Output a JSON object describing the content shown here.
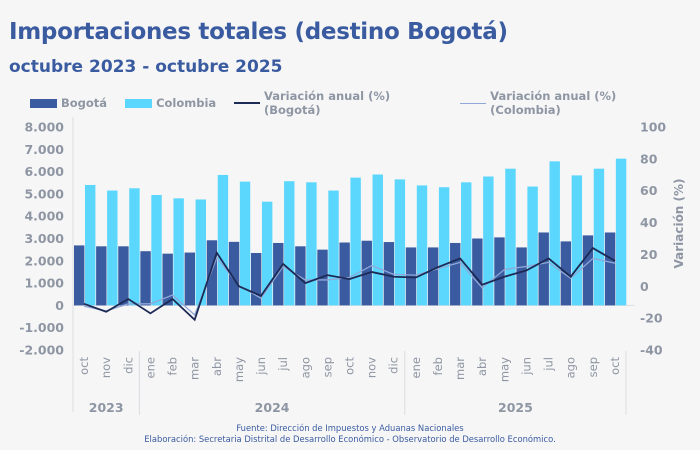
{
  "header": {
    "title": "Importaciones totales (destino Bogotá)",
    "subtitle": "octubre 2023 - octubre 2025"
  },
  "legend": [
    {
      "label": "Bogotá",
      "kind": "bar",
      "color": "#3a5ba0"
    },
    {
      "label": "Colombia",
      "kind": "bar",
      "color": "#5bd6fc"
    },
    {
      "label": "Variación anual (%) (Bogotá)",
      "kind": "line",
      "color": "#1c2a55"
    },
    {
      "label": "Variación anual (%) (Colombia)",
      "kind": "line",
      "color": "#8fa8d8"
    }
  ],
  "footer": {
    "source": "Fuente: Dirección de Impuestos y Aduanas Nacionales",
    "credit": "Elaboración: Secretaria Distrital de Desarrollo Económico - Observatorio de Desarrollo Económico."
  },
  "chart_data": {
    "type": "bar",
    "title": "Importaciones totales (destino Bogotá)",
    "subtitle": "octubre 2023 - octubre 2025",
    "categories": [
      "oct",
      "nov",
      "dic",
      "ene",
      "feb",
      "mar",
      "abr",
      "may",
      "jun",
      "jul",
      "ago",
      "sep",
      "oct",
      "nov",
      "dic",
      "ene",
      "feb",
      "mar",
      "abr",
      "may",
      "jun",
      "jul",
      "ago",
      "sep",
      "oct"
    ],
    "year_groups": [
      {
        "label": "2023",
        "start": 0,
        "end": 2
      },
      {
        "label": "2024",
        "start": 3,
        "end": 14
      },
      {
        "label": "2025",
        "start": 15,
        "end": 24
      }
    ],
    "series": [
      {
        "name": "Bogotá",
        "type": "bar",
        "axis": "left",
        "color": "#3a5ba0",
        "values": [
          2690,
          2650,
          2650,
          2430,
          2320,
          2370,
          2920,
          2850,
          2350,
          2800,
          2650,
          2500,
          2820,
          2900,
          2840,
          2600,
          2600,
          2800,
          3000,
          3050,
          2600,
          3270,
          2870,
          3140,
          3270
        ]
      },
      {
        "name": "Colombia",
        "type": "bar",
        "axis": "left",
        "color": "#5bd6fc",
        "values": [
          5400,
          5150,
          5250,
          4950,
          4800,
          4750,
          5850,
          5550,
          4650,
          5570,
          5520,
          5150,
          5730,
          5870,
          5650,
          5380,
          5300,
          5520,
          5780,
          6130,
          5330,
          6460,
          5830,
          6130,
          6580
        ]
      },
      {
        "name": "Variación anual (%) (Bogotá)",
        "type": "line",
        "axis": "right",
        "color": "#1c2a55",
        "values": [
          -11,
          -16,
          -8,
          -17,
          -8,
          -21,
          21,
          0,
          -6,
          14,
          2,
          7,
          4.5,
          9,
          6,
          5.5,
          12,
          17.5,
          1,
          6,
          10,
          17.5,
          6,
          24,
          16
        ]
      },
      {
        "name": "Variación anual (%) (Colombia)",
        "type": "line",
        "axis": "right",
        "color": "#8fa8d8",
        "values": [
          -12.5,
          -15.5,
          -11,
          -11,
          -5.5,
          -18,
          18,
          0.5,
          -7.5,
          12.5,
          4,
          4,
          5.5,
          13,
          7.5,
          7,
          11,
          15,
          -1,
          10.5,
          12.5,
          15,
          5,
          17.5,
          14.5
        ]
      }
    ],
    "y_left": {
      "label": "",
      "ylim": [
        -2000,
        8000
      ],
      "ticks": [
        -2000,
        -1000,
        0,
        1000,
        2000,
        3000,
        4000,
        5000,
        6000,
        7000,
        8000
      ],
      "tick_labels": [
        "-2.000",
        "-1.000",
        "0",
        "1.000",
        "2.000",
        "3.000",
        "4.000",
        "5.000",
        "6.000",
        "7.000",
        "8.000"
      ]
    },
    "y_right": {
      "label": "Variación (%)",
      "ylim": [
        -40,
        100
      ],
      "ticks": [
        -40,
        -20,
        0,
        20,
        40,
        60,
        80,
        100
      ],
      "tick_labels": [
        "-40",
        "-20",
        "0",
        "20",
        "40",
        "60",
        "80",
        "100"
      ]
    },
    "grid": false,
    "legend_position": "top"
  }
}
